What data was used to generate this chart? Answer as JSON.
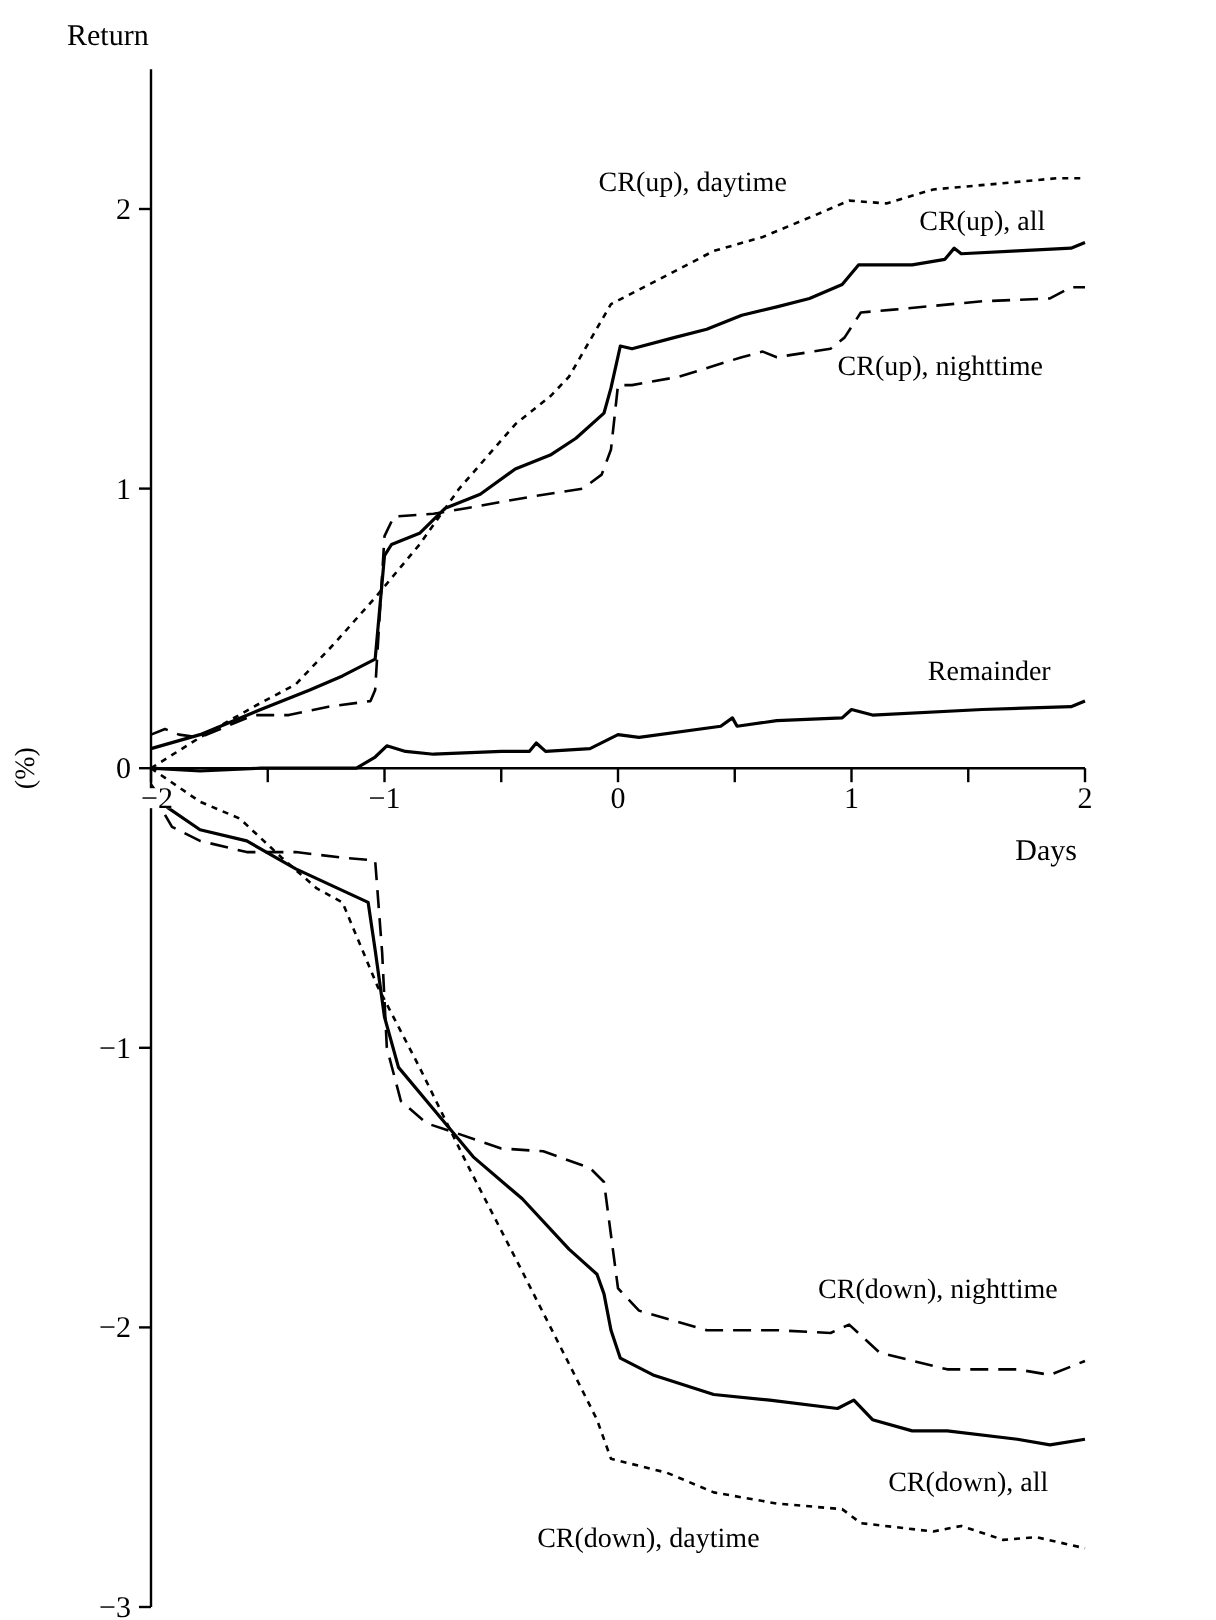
{
  "chart_data": {
    "type": "line",
    "xlabel": "Days",
    "ylabel": "Return",
    "annotations": [
      "(%)"
    ],
    "xlim": [
      -2,
      2
    ],
    "ylim": [
      -3,
      2.5
    ],
    "xticks": [
      -2,
      {
        "value": -1.5,
        "label": null
      },
      -1,
      {
        "value": -0.5,
        "label": null
      },
      0,
      {
        "value": 0.5,
        "label": null
      },
      1,
      {
        "value": 1.5,
        "label": null
      },
      2
    ],
    "yticks": [
      -3,
      -2,
      -1,
      0,
      1,
      2
    ],
    "grid": false,
    "series": [
      {
        "name": "CR(up), all",
        "color": "#000000",
        "line_style": "solid",
        "x": [
          -2,
          -1.79,
          -1.53,
          -1.32,
          -1.18,
          -1.04,
          -1.0,
          -0.97,
          -0.85,
          -0.74,
          -0.59,
          -0.44,
          -0.29,
          -0.18,
          -0.06,
          -0.03,
          0.01,
          0.06,
          0.24,
          0.38,
          0.53,
          0.68,
          0.82,
          0.96,
          1.03,
          1.26,
          1.4,
          1.44,
          1.47,
          1.71,
          1.94,
          2.0
        ],
        "values": [
          0.07,
          0.12,
          0.21,
          0.28,
          0.33,
          0.39,
          0.76,
          0.8,
          0.84,
          0.93,
          0.98,
          1.07,
          1.12,
          1.18,
          1.27,
          1.36,
          1.51,
          1.5,
          1.54,
          1.57,
          1.62,
          1.65,
          1.68,
          1.73,
          1.8,
          1.8,
          1.82,
          1.86,
          1.84,
          1.85,
          1.86,
          1.88
        ]
      },
      {
        "name": "CR(up), daytime",
        "color": "#000000",
        "line_style": "dotted",
        "x": [
          -2,
          -1.79,
          -1.56,
          -1.38,
          -1.21,
          -1.03,
          -0.85,
          -0.68,
          -0.44,
          -0.29,
          -0.21,
          -0.03,
          0.18,
          0.41,
          0.62,
          0.85,
          0.99,
          1.15,
          1.35,
          1.62,
          1.88,
          2.0
        ],
        "values": [
          0.0,
          0.11,
          0.22,
          0.3,
          0.45,
          0.62,
          0.8,
          1.0,
          1.23,
          1.33,
          1.4,
          1.66,
          1.75,
          1.85,
          1.9,
          1.98,
          2.03,
          2.02,
          2.07,
          2.09,
          2.11,
          2.11
        ]
      },
      {
        "name": "CR(up), nighttime",
        "color": "#000000",
        "line_style": "dashed",
        "x": [
          -2,
          -1.94,
          -1.88,
          -1.79,
          -1.56,
          -1.41,
          -1.24,
          -1.06,
          -1.04,
          -1.0,
          -0.96,
          -0.79,
          -0.65,
          -0.38,
          -0.15,
          -0.07,
          -0.03,
          0.0,
          0.06,
          0.26,
          0.53,
          0.62,
          0.68,
          0.91,
          0.97,
          1.04,
          1.18,
          1.56,
          1.85,
          1.94,
          2.0
        ],
        "values": [
          0.12,
          0.14,
          0.12,
          0.11,
          0.19,
          0.19,
          0.22,
          0.24,
          0.28,
          0.83,
          0.9,
          0.91,
          0.93,
          0.97,
          1.0,
          1.05,
          1.14,
          1.37,
          1.37,
          1.4,
          1.47,
          1.49,
          1.47,
          1.5,
          1.54,
          1.63,
          1.64,
          1.67,
          1.68,
          1.72,
          1.72
        ]
      },
      {
        "name": "Remainder",
        "color": "#000000",
        "line_style": "solid",
        "x": [
          -2,
          -1.79,
          -1.53,
          -1.12,
          -1.04,
          -0.99,
          -0.91,
          -0.79,
          -0.5,
          -0.38,
          -0.35,
          -0.31,
          -0.12,
          0.0,
          0.09,
          0.44,
          0.49,
          0.51,
          0.68,
          0.96,
          1.0,
          1.09,
          1.56,
          1.94,
          2.0
        ],
        "values": [
          0.0,
          -0.01,
          0.0,
          0.0,
          0.04,
          0.08,
          0.06,
          0.05,
          0.06,
          0.06,
          0.09,
          0.06,
          0.07,
          0.12,
          0.11,
          0.15,
          0.18,
          0.15,
          0.17,
          0.18,
          0.21,
          0.19,
          0.21,
          0.22,
          0.24
        ]
      },
      {
        "name": "CR(down), all",
        "color": "#000000",
        "line_style": "solid",
        "x": [
          -2,
          -1.93,
          -1.79,
          -1.59,
          -1.38,
          -1.07,
          -1.04,
          -1.0,
          -0.94,
          -0.79,
          -0.62,
          -0.41,
          -0.21,
          -0.09,
          -0.06,
          -0.03,
          0.01,
          0.15,
          0.41,
          0.65,
          0.94,
          1.01,
          1.09,
          1.26,
          1.41,
          1.71,
          1.85,
          2.0
        ],
        "values": [
          -0.06,
          -0.14,
          -0.22,
          -0.26,
          -0.36,
          -0.48,
          -0.65,
          -0.89,
          -1.07,
          -1.22,
          -1.39,
          -1.54,
          -1.72,
          -1.81,
          -1.88,
          -2.01,
          -2.11,
          -2.17,
          -2.24,
          -2.26,
          -2.29,
          -2.26,
          -2.33,
          -2.37,
          -2.37,
          -2.4,
          -2.42,
          -2.4
        ]
      },
      {
        "name": "CR(down), daytime",
        "color": "#000000",
        "line_style": "dotted",
        "x": [
          -2,
          -1.79,
          -1.62,
          -1.44,
          -1.29,
          -1.18,
          -1.03,
          -0.85,
          -0.65,
          -0.41,
          -0.21,
          -0.09,
          -0.03,
          0.21,
          0.41,
          0.68,
          0.96,
          1.04,
          1.35,
          1.47,
          1.65,
          1.79,
          2.0
        ],
        "values": [
          0.0,
          -0.12,
          -0.18,
          -0.32,
          -0.43,
          -0.48,
          -0.78,
          -1.07,
          -1.41,
          -1.8,
          -2.13,
          -2.33,
          -2.47,
          -2.52,
          -2.59,
          -2.63,
          -2.65,
          -2.7,
          -2.73,
          -2.71,
          -2.76,
          -2.75,
          -2.79
        ]
      },
      {
        "name": "CR(down), nighttime",
        "color": "#000000",
        "line_style": "dashed",
        "x": [
          -2,
          -1.91,
          -1.79,
          -1.59,
          -1.38,
          -1.18,
          -1.04,
          -1.01,
          -0.99,
          -0.93,
          -0.82,
          -0.71,
          -0.5,
          -0.32,
          -0.12,
          -0.06,
          0.0,
          0.09,
          0.38,
          0.68,
          0.91,
          0.99,
          1.12,
          1.41,
          1.71,
          1.85,
          2.0
        ],
        "values": [
          -0.08,
          -0.21,
          -0.26,
          -0.3,
          -0.3,
          -0.32,
          -0.33,
          -0.66,
          -1.0,
          -1.19,
          -1.27,
          -1.3,
          -1.36,
          -1.37,
          -1.43,
          -1.48,
          -1.86,
          -1.94,
          -2.01,
          -2.01,
          -2.02,
          -1.99,
          -2.09,
          -2.15,
          -2.15,
          -2.17,
          -2.12
        ]
      }
    ]
  }
}
